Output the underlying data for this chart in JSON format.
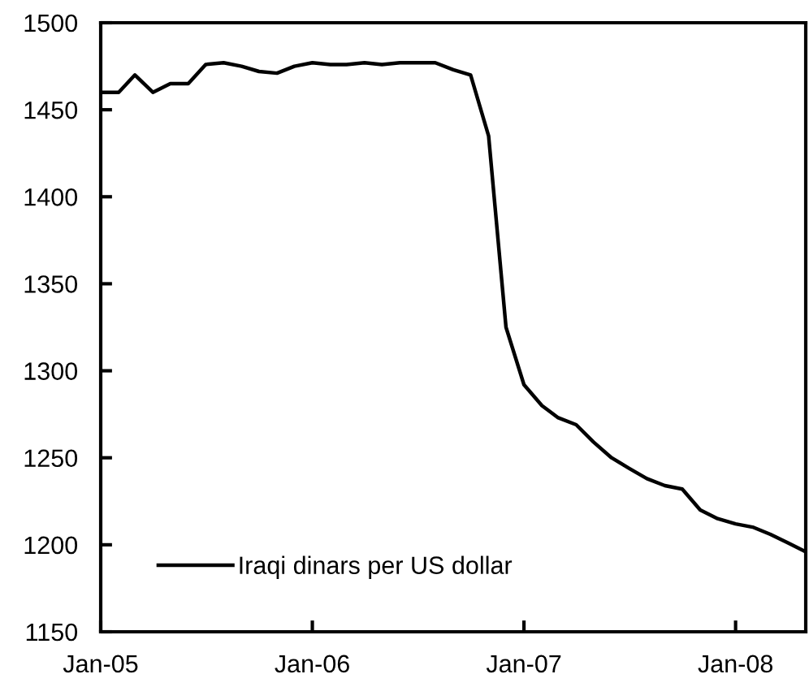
{
  "chart_data": {
    "type": "line",
    "x": [
      "2005-01",
      "2005-02",
      "2005-03",
      "2005-04",
      "2005-05",
      "2005-06",
      "2005-07",
      "2005-08",
      "2005-09",
      "2005-10",
      "2005-11",
      "2005-12",
      "2006-01",
      "2006-02",
      "2006-03",
      "2006-04",
      "2006-05",
      "2006-06",
      "2006-07",
      "2006-08",
      "2006-09",
      "2006-10",
      "2006-11",
      "2006-12",
      "2007-01",
      "2007-02",
      "2007-03",
      "2007-04",
      "2007-05",
      "2007-06",
      "2007-07",
      "2007-08",
      "2007-09",
      "2007-10",
      "2007-11",
      "2007-12",
      "2008-01",
      "2008-02",
      "2008-03",
      "2008-04",
      "2008-05"
    ],
    "series": [
      {
        "name": "Iraqi dinars per US dollar",
        "color": "#000000",
        "values": [
          1460,
          1460,
          1470,
          1460,
          1465,
          1465,
          1476,
          1477,
          1475,
          1472,
          1471,
          1475,
          1477,
          1476,
          1476,
          1477,
          1476,
          1477,
          1477,
          1477,
          1473,
          1470,
          1435,
          1325,
          1292,
          1280,
          1273,
          1269,
          1259,
          1250,
          1244,
          1238,
          1234,
          1232,
          1220,
          1215,
          1212,
          1210,
          1206,
          1201,
          1196
        ]
      }
    ],
    "xlim": [
      "2005-01",
      "2008-05"
    ],
    "xticks": [
      {
        "value": "2005-01",
        "label": "Jan-05"
      },
      {
        "value": "2006-01",
        "label": "Jan-06"
      },
      {
        "value": "2007-01",
        "label": "Jan-07"
      },
      {
        "value": "2008-01",
        "label": "Jan-08"
      }
    ],
    "ylim": [
      1150,
      1500
    ],
    "yticks": [
      1150,
      1200,
      1250,
      1300,
      1350,
      1400,
      1450,
      1500
    ],
    "legend": "bottom left",
    "marker": "none",
    "line_style": "solid"
  }
}
